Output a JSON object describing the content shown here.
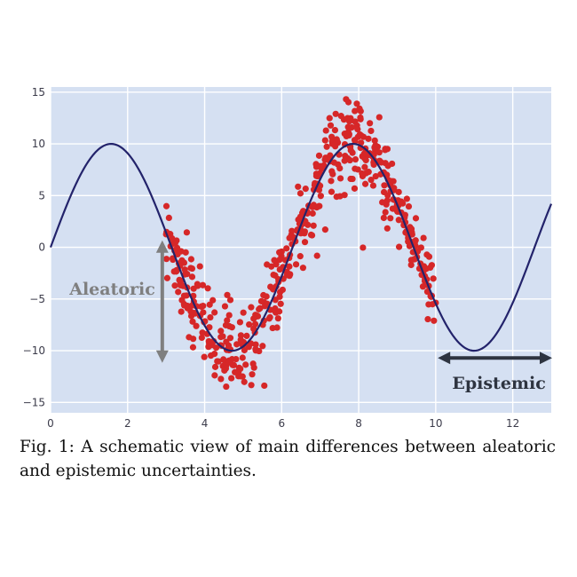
{
  "chart_data": {
    "type": "scatter",
    "xlim": [
      0,
      13
    ],
    "ylim": [
      -16,
      15.5
    ],
    "x_ticks": [
      0,
      2,
      4,
      6,
      8,
      10,
      12
    ],
    "y_ticks": [
      15,
      10,
      5,
      0,
      -5,
      -10,
      -15
    ],
    "y_tick_labels": [
      "15",
      "10",
      "5",
      "0",
      "−5",
      "−10",
      "−15"
    ],
    "grid": true,
    "colors": {
      "plot_background": "#d5e0f2",
      "gridline": "#ffffff",
      "curve": "#23236b",
      "points": "#d62728",
      "aleatoric_arrow": "#7f7f7f",
      "epistemic_arrow": "#2e3440"
    },
    "curve": {
      "function": "10*sin(x)",
      "x_range": [
        0,
        13
      ]
    },
    "scatter_x_range": [
      3,
      10
    ],
    "annotations": [
      {
        "text": "Aleatoric",
        "arrow": "vertical",
        "x": 2.9,
        "y_from": 0.5,
        "y_to": -11
      },
      {
        "text": "Epistemic",
        "arrow": "horizontal",
        "y": -10.7,
        "x_from": 10.1,
        "x_to": 13
      }
    ]
  },
  "caption": "Fig. 1: A schematic view of main differences between aleatoric and epistemic uncertainties."
}
